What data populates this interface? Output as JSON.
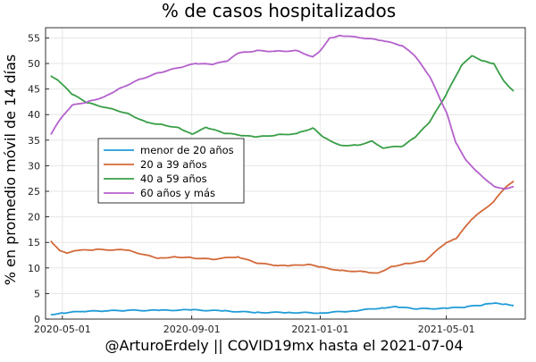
{
  "chart_data": {
    "type": "line",
    "title": "% de casos hospitalizados",
    "xlabel": "@ArturoErdely || COVID19mx hasta el 2021-07-04",
    "ylabel": "% en promedio móvil de 14 días",
    "xlim": [
      "2020-04-15",
      "2021-07-15"
    ],
    "ylim": [
      0,
      57
    ],
    "x_ticks": [
      "2020-05-01",
      "2020-09-01",
      "2021-01-01",
      "2021-05-01"
    ],
    "y_ticks": [
      0,
      5,
      10,
      15,
      20,
      25,
      30,
      35,
      40,
      45,
      50,
      55
    ],
    "grid": true,
    "legend_position": "left-center",
    "series": [
      {
        "name": "menor de 20 años",
        "color": "#1f9bd6",
        "points": [
          [
            "2020-04-20",
            0.9
          ],
          [
            "2020-05-01",
            1.2
          ],
          [
            "2020-05-20",
            1.5
          ],
          [
            "2020-06-10",
            1.6
          ],
          [
            "2020-07-01",
            1.7
          ],
          [
            "2020-08-01",
            1.7
          ],
          [
            "2020-09-01",
            1.8
          ],
          [
            "2020-10-01",
            1.6
          ],
          [
            "2020-11-01",
            1.3
          ],
          [
            "2020-12-01",
            1.3
          ],
          [
            "2021-01-01",
            1.2
          ],
          [
            "2021-02-01",
            1.6
          ],
          [
            "2021-03-01",
            2.2
          ],
          [
            "2021-03-15",
            2.4
          ],
          [
            "2021-04-01",
            2.0
          ],
          [
            "2021-05-01",
            2.1
          ],
          [
            "2021-05-20",
            2.4
          ],
          [
            "2021-06-05",
            2.8
          ],
          [
            "2021-06-15",
            3.1
          ],
          [
            "2021-06-25",
            2.9
          ],
          [
            "2021-07-04",
            2.7
          ]
        ]
      },
      {
        "name": "20 a 39 años",
        "color": "#d2693a",
        "points": [
          [
            "2020-04-20",
            15.3
          ],
          [
            "2020-04-28",
            13.5
          ],
          [
            "2020-05-05",
            12.9
          ],
          [
            "2020-05-15",
            13.4
          ],
          [
            "2020-06-01",
            13.6
          ],
          [
            "2020-07-01",
            13.5
          ],
          [
            "2020-07-20",
            12.5
          ],
          [
            "2020-08-01",
            11.9
          ],
          [
            "2020-08-15",
            12.2
          ],
          [
            "2020-09-01",
            12.0
          ],
          [
            "2020-09-20",
            11.7
          ],
          [
            "2020-10-15",
            12.2
          ],
          [
            "2020-11-01",
            11.0
          ],
          [
            "2020-11-20",
            10.5
          ],
          [
            "2020-12-01",
            10.4
          ],
          [
            "2020-12-20",
            10.7
          ],
          [
            "2021-01-01",
            10.2
          ],
          [
            "2021-01-20",
            9.5
          ],
          [
            "2021-02-10",
            9.3
          ],
          [
            "2021-02-25",
            9.0
          ],
          [
            "2021-03-10",
            10.3
          ],
          [
            "2021-03-25",
            10.9
          ],
          [
            "2021-04-10",
            11.3
          ],
          [
            "2021-05-01",
            15.0
          ],
          [
            "2021-05-10",
            15.7
          ],
          [
            "2021-05-25",
            19.5
          ],
          [
            "2021-06-15",
            23.0
          ],
          [
            "2021-06-25",
            25.5
          ],
          [
            "2021-07-04",
            27.0
          ]
        ]
      },
      {
        "name": "40 a 59 años",
        "color": "#389e46",
        "points": [
          [
            "2020-04-20",
            47.6
          ],
          [
            "2020-04-28",
            46.5
          ],
          [
            "2020-05-10",
            44.0
          ],
          [
            "2020-05-25",
            42.3
          ],
          [
            "2020-06-15",
            41.2
          ],
          [
            "2020-07-01",
            40.3
          ],
          [
            "2020-07-20",
            38.5
          ],
          [
            "2020-08-05",
            38.0
          ],
          [
            "2020-08-20",
            37.4
          ],
          [
            "2020-09-01",
            36.2
          ],
          [
            "2020-09-15",
            37.5
          ],
          [
            "2020-10-01",
            36.4
          ],
          [
            "2020-10-20",
            35.9
          ],
          [
            "2020-11-01",
            35.6
          ],
          [
            "2020-11-20",
            36.0
          ],
          [
            "2020-12-10",
            36.3
          ],
          [
            "2020-12-25",
            37.4
          ],
          [
            "2021-01-05",
            35.5
          ],
          [
            "2021-01-20",
            34.0
          ],
          [
            "2021-02-05",
            34.0
          ],
          [
            "2021-02-20",
            34.8
          ],
          [
            "2021-03-01",
            33.5
          ],
          [
            "2021-03-20",
            33.8
          ],
          [
            "2021-04-01",
            35.5
          ],
          [
            "2021-04-15",
            38.5
          ],
          [
            "2021-05-01",
            44.0
          ],
          [
            "2021-05-15",
            49.5
          ],
          [
            "2021-05-25",
            51.5
          ],
          [
            "2021-06-05",
            50.5
          ],
          [
            "2021-06-15",
            50.0
          ],
          [
            "2021-06-25",
            46.5
          ],
          [
            "2021-07-04",
            44.6
          ]
        ]
      },
      {
        "name": "60 años y más",
        "color": "#b461cc",
        "points": [
          [
            "2020-04-20",
            36.1
          ],
          [
            "2020-04-28",
            38.8
          ],
          [
            "2020-05-10",
            41.8
          ],
          [
            "2020-05-25",
            42.5
          ],
          [
            "2020-06-10",
            43.5
          ],
          [
            "2020-06-25",
            45.2
          ],
          [
            "2020-07-15",
            47.0
          ],
          [
            "2020-08-01",
            48.2
          ],
          [
            "2020-08-20",
            49.2
          ],
          [
            "2020-09-05",
            50.0
          ],
          [
            "2020-09-20",
            49.8
          ],
          [
            "2020-10-05",
            50.5
          ],
          [
            "2020-10-15",
            52.0
          ],
          [
            "2020-11-01",
            52.5
          ],
          [
            "2020-11-20",
            52.4
          ],
          [
            "2020-12-10",
            52.5
          ],
          [
            "2020-12-25",
            51.3
          ],
          [
            "2021-01-01",
            52.5
          ],
          [
            "2021-01-10",
            55.0
          ],
          [
            "2021-01-20",
            55.5
          ],
          [
            "2021-02-10",
            55.0
          ],
          [
            "2021-03-01",
            54.5
          ],
          [
            "2021-03-20",
            53.5
          ],
          [
            "2021-04-01",
            51.5
          ],
          [
            "2021-04-15",
            47.5
          ],
          [
            "2021-05-01",
            40.5
          ],
          [
            "2021-05-10",
            34.5
          ],
          [
            "2021-05-20",
            31.0
          ],
          [
            "2021-06-01",
            28.5
          ],
          [
            "2021-06-15",
            26.0
          ],
          [
            "2021-06-25",
            25.5
          ],
          [
            "2021-07-04",
            25.9
          ]
        ]
      }
    ]
  }
}
